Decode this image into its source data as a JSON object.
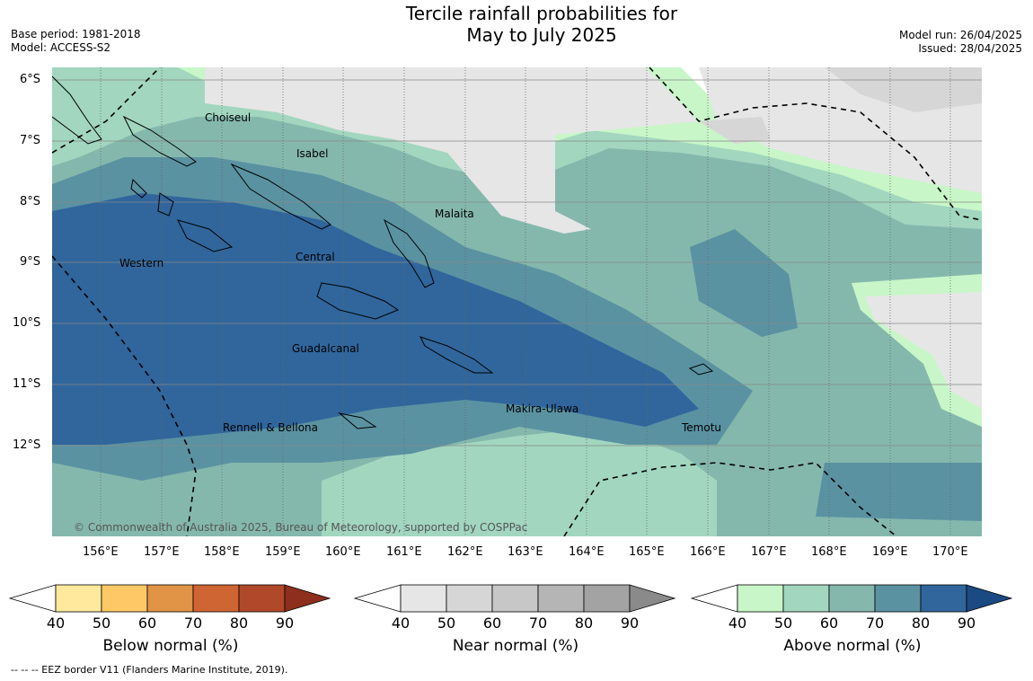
{
  "header": {
    "title_line1": "Tercile rainfall probabilities for",
    "title_line2": "May to July 2025",
    "base_period": "Base period: 1981-2018",
    "model": "Model: ACCESS-S2",
    "model_run": "Model run: 26/04/2025",
    "issued": "Issued: 28/04/2025"
  },
  "map": {
    "lat_labels": [
      "6°S",
      "7°S",
      "8°S",
      "9°S",
      "10°S",
      "11°S",
      "12°S"
    ],
    "lon_labels": [
      "156°E",
      "157°E",
      "158°E",
      "159°E",
      "160°E",
      "161°E",
      "162°E",
      "163°E",
      "164°E",
      "165°E",
      "166°E",
      "167°E",
      "168°E",
      "169°E",
      "170°E"
    ],
    "places": [
      "Choiseul",
      "Isabel",
      "Malaita",
      "Western",
      "Central",
      "Guadalcanal",
      "Makira-Ulawa",
      "Rennell & Bellona",
      "Temotu"
    ],
    "copyright": "© Commonwealth of Australia 2025, Bureau of Meteorology, supported by COSPPac"
  },
  "legend": {
    "ticks": [
      "40",
      "50",
      "60",
      "70",
      "80",
      "90"
    ],
    "below": {
      "label": "Below normal (%)",
      "colors": [
        "#ffffff",
        "#fee99d",
        "#fdc865",
        "#e19346",
        "#ce6532",
        "#b1482a",
        "#8d2f1c"
      ]
    },
    "near": {
      "label": "Near normal (%)",
      "colors": [
        "#ffffff",
        "#e6e6e6",
        "#d6d6d6",
        "#c7c7c7",
        "#b5b5b5",
        "#a3a3a3",
        "#8a8a8a"
      ]
    },
    "above": {
      "label": "Above normal (%)",
      "colors": [
        "#ffffff",
        "#c8f6c8",
        "#a2d6bf",
        "#85b8ad",
        "#5a92a2",
        "#30669c",
        "#1b4a82"
      ]
    }
  },
  "footer": "--  --  -- EEZ border V11 (Flanders Marine Institute, 2019)."
}
